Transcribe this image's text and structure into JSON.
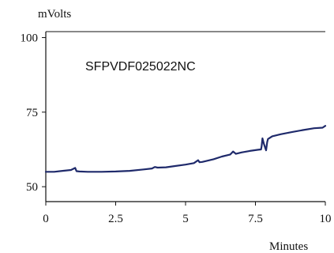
{
  "chart_data": {
    "type": "line",
    "title": "SFPVDF025022NC",
    "ylabel": "mVolts",
    "xlabel": "Minutes",
    "xlim": [
      0,
      10
    ],
    "ylim": [
      45,
      102
    ],
    "x_ticks": [
      0,
      2.5,
      5,
      7.5,
      10
    ],
    "x_tick_labels": [
      "0",
      "2.5",
      "5",
      "7.5",
      "10"
    ],
    "y_ticks": [
      50,
      75,
      100
    ],
    "y_tick_labels": [
      "50",
      "75",
      "100"
    ],
    "grid": false,
    "line_color": "#1f2a6b",
    "series": [
      {
        "x": [
          0.0,
          0.3,
          0.6,
          0.9,
          1.05,
          1.1,
          1.2,
          1.5,
          2.0,
          2.5,
          3.0,
          3.5,
          3.8,
          3.9,
          4.0,
          4.3,
          4.6,
          5.0,
          5.3,
          5.45,
          5.5,
          5.6,
          6.0,
          6.3,
          6.6,
          6.7,
          6.8,
          7.0,
          7.3,
          7.6,
          7.7,
          7.72,
          7.75,
          7.8,
          7.85,
          7.88,
          7.92,
          7.95,
          8.0,
          8.1,
          8.4,
          8.8,
          9.2,
          9.6,
          9.9,
          10.0
        ],
        "y": [
          55.0,
          55.0,
          55.3,
          55.6,
          56.3,
          55.2,
          55.1,
          55.0,
          55.0,
          55.1,
          55.3,
          55.8,
          56.1,
          56.6,
          56.4,
          56.5,
          56.9,
          57.4,
          57.9,
          58.9,
          58.2,
          58.3,
          59.2,
          60.1,
          60.8,
          61.8,
          61.0,
          61.5,
          62.0,
          62.4,
          62.5,
          63.5,
          66.2,
          64.5,
          63.0,
          62.2,
          65.0,
          66.0,
          66.3,
          66.9,
          67.6,
          68.3,
          69.0,
          69.6,
          69.8,
          70.4
        ]
      }
    ]
  }
}
